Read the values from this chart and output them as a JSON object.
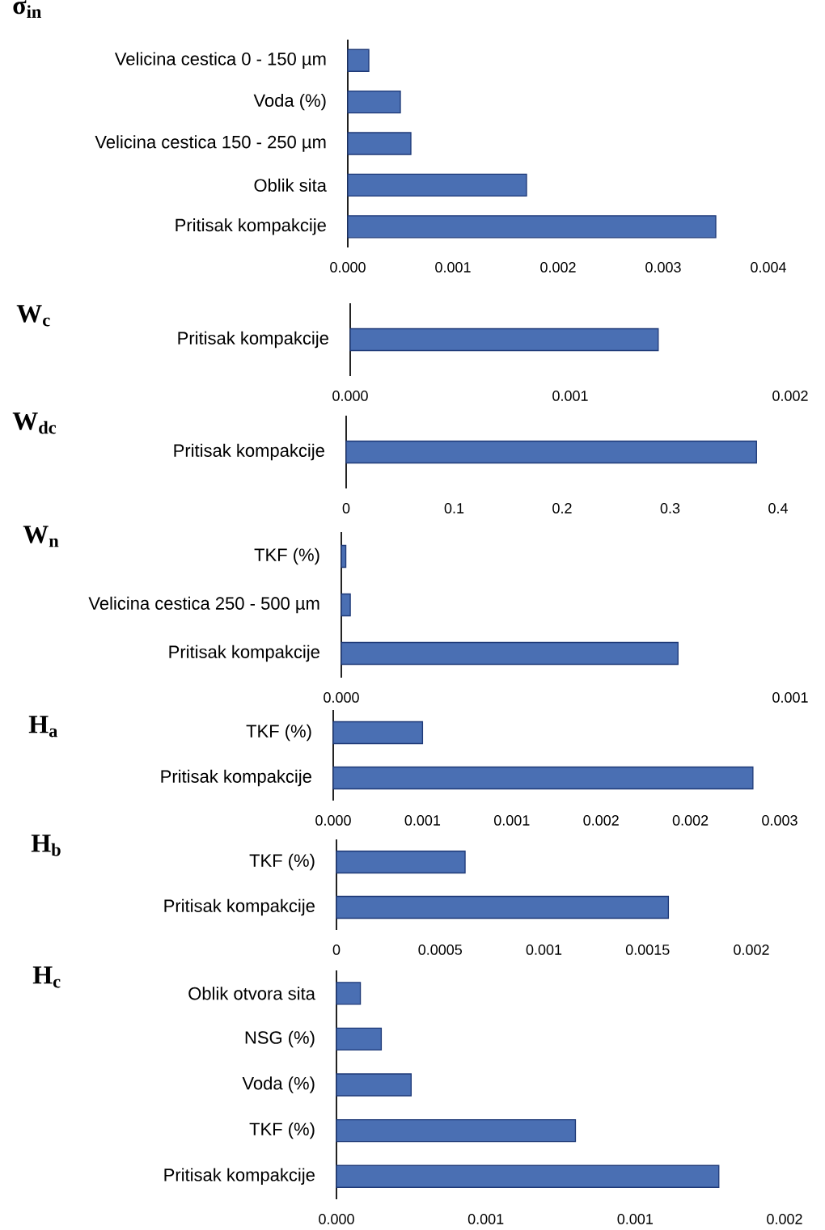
{
  "chart_data": [
    {
      "type": "bar",
      "orientation": "horizontal",
      "title": "σ$_{in}$",
      "categories": [
        "Velicina cestica 0 - 150 µm",
        "Voda (%)",
        "Velicina cestica 150 - 250 µm",
        "Oblik sita",
        "Pritisak kompakcije"
      ],
      "values": [
        0.0002,
        0.0005,
        0.0006,
        0.0017,
        0.0035
      ],
      "color": "#4a6fb3",
      "xlim": [
        0,
        0.004
      ],
      "xticks": [
        {
          "value": 0,
          "label": "0.000"
        },
        {
          "value": 0.001,
          "label": "0.001"
        },
        {
          "value": 0.002,
          "label": "0.002"
        },
        {
          "value": 0.003,
          "label": "0.003"
        },
        {
          "value": 0.004,
          "label": "0.004"
        }
      ]
    },
    {
      "type": "bar",
      "orientation": "horizontal",
      "title": "W$_{c}$",
      "categories": [
        "Pritisak kompakcije"
      ],
      "values": [
        0.0014
      ],
      "color": "#4a6fb3",
      "xlim": [
        0,
        0.002
      ],
      "xticks": [
        {
          "value": 0,
          "label": "0.000"
        },
        {
          "value": 0.001,
          "label": "0.001"
        },
        {
          "value": 0.002,
          "label": "0.002"
        }
      ]
    },
    {
      "type": "bar",
      "orientation": "horizontal",
      "title": "W$_{dc}$",
      "categories": [
        "Pritisak kompakcije"
      ],
      "values": [
        0.38
      ],
      "color": "#4a6fb3",
      "xlim": [
        0,
        0.4
      ],
      "xticks": [
        0,
        0.1,
        0.2,
        0.3,
        0.4
      ]
    },
    {
      "type": "bar",
      "orientation": "horizontal",
      "title": "W$_{n}$",
      "categories": [
        "TKF (%)",
        "Velicina cestica 250 - 500 µm",
        "Pritisak kompakcije"
      ],
      "values": [
        1e-05,
        2e-05,
        0.00075
      ],
      "color": "#4a6fb3",
      "xlim": [
        0,
        0.001
      ],
      "xticks": [
        {
          "value": 0,
          "label": "0.000"
        },
        {
          "value": 0.001,
          "label": "0.001"
        }
      ]
    },
    {
      "type": "bar",
      "orientation": "horizontal",
      "title": "H$_{a}$",
      "categories": [
        "TKF (%)",
        "Pritisak kompakcije"
      ],
      "values": [
        0.0005,
        0.00235
      ],
      "color": "#4a6fb3",
      "xlim": [
        0,
        0.0025
      ],
      "xticks": [
        {
          "value": 0,
          "label": "0.000"
        },
        {
          "value": 0.0005,
          "label": "0.001"
        },
        {
          "value": 0.001,
          "label": "0.001"
        },
        {
          "value": 0.0015,
          "label": "0.002"
        },
        {
          "value": 0.002,
          "label": "0.002"
        },
        {
          "value": 0.0025,
          "label": "0.003"
        }
      ]
    },
    {
      "type": "bar",
      "orientation": "horizontal",
      "title": "H$_{b}$",
      "categories": [
        "TKF (%)",
        "Pritisak kompakcije"
      ],
      "values": [
        0.00062,
        0.0016
      ],
      "color": "#4a6fb3",
      "xlim": [
        0,
        0.002
      ],
      "xticks": [
        0,
        0.0005,
        0.001,
        0.0015,
        0.002
      ]
    },
    {
      "type": "bar",
      "orientation": "horizontal",
      "title": "H$_{c}$",
      "categories": [
        "Oblik otvora sita",
        "NSG (%)",
        "Voda (%)",
        "TKF (%)",
        "Pritisak kompakcije"
      ],
      "values": [
        8e-05,
        0.00015,
        0.00025,
        0.0008,
        0.00128
      ],
      "color": "#4a6fb3",
      "xlim": [
        0,
        0.0015
      ],
      "xticks": [
        {
          "value": 0,
          "label": "0.000"
        },
        {
          "value": 0.0005,
          "label": "0.001"
        },
        {
          "value": 0.001,
          "label": "0.001"
        },
        {
          "value": 0.0015,
          "label": "0.002"
        }
      ]
    }
  ]
}
